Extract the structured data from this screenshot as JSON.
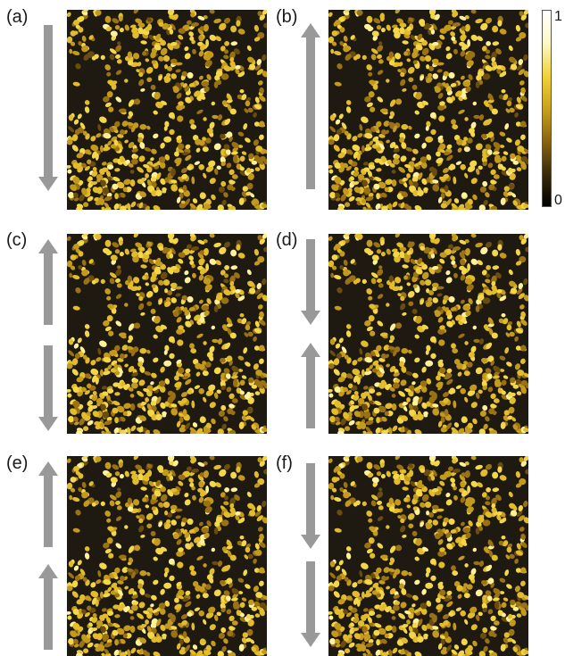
{
  "panels": [
    {
      "label": "(a)",
      "arrows": [
        "down"
      ]
    },
    {
      "label": "(b)",
      "arrows": [
        "up"
      ]
    },
    {
      "label": "(c)",
      "arrows": [
        "up",
        "down"
      ]
    },
    {
      "label": "(d)",
      "arrows": [
        "down",
        "up"
      ]
    },
    {
      "label": "(e)",
      "arrows": [
        "up",
        "up"
      ]
    },
    {
      "label": "(f)",
      "arrows": [
        "down",
        "down"
      ]
    }
  ],
  "colorbar": {
    "max_label": "1",
    "min_label": "0",
    "colors": [
      "#000000",
      "#3a2a0a",
      "#8a6410",
      "#c9a21c",
      "#f0d33a",
      "#fdf7c8",
      "#ffffff"
    ]
  },
  "colors": {
    "arrow": "#999999",
    "background_dark": "#1e1a12"
  }
}
